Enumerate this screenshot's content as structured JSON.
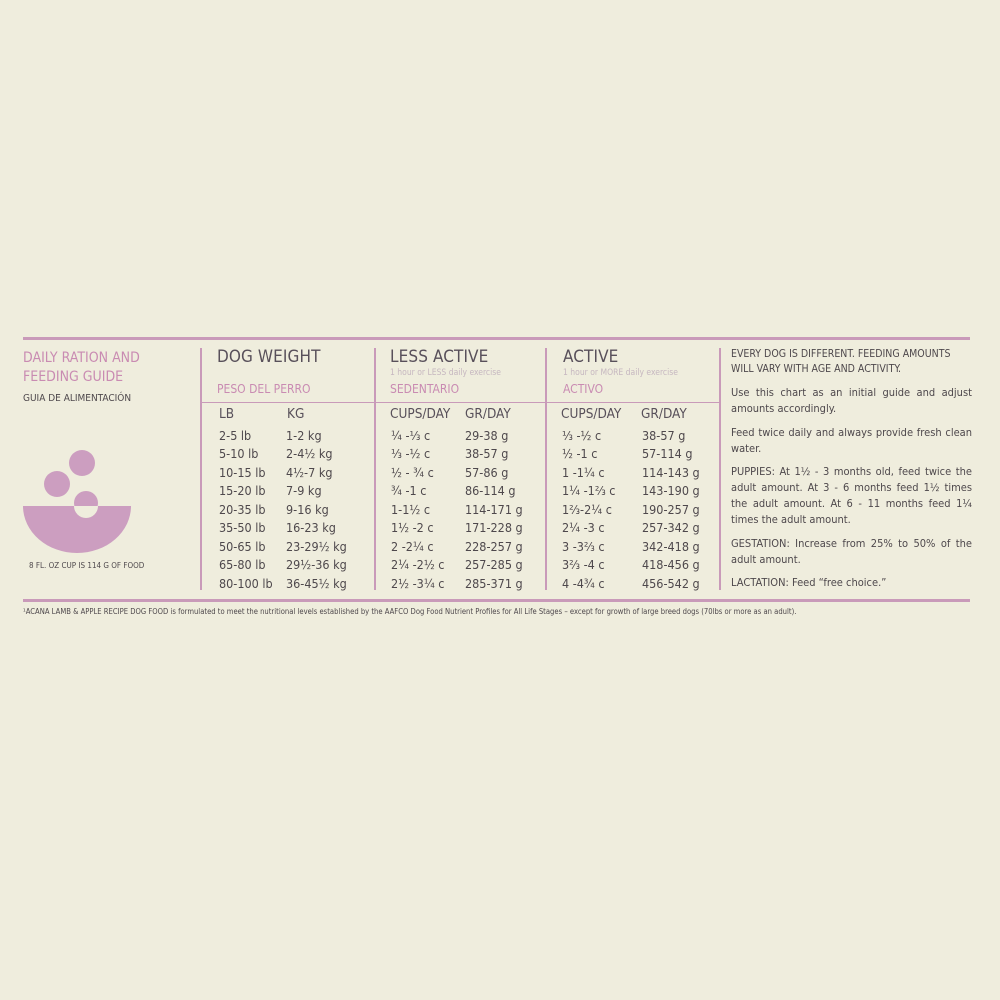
{
  "guide": {
    "title_line1": "DAILY RATION AND",
    "title_line2": "FEEDING GUIDE",
    "subtitle": "GUIA DE ALIMENTACIÓN",
    "cup_note": "8 FL. OZ CUP IS 114 G OF FOOD"
  },
  "table": {
    "dog_weight": {
      "title": "DOG WEIGHT",
      "spanish": "PESO DEL PERRO",
      "col1": "LB",
      "col2": "KG"
    },
    "less_active": {
      "title": "LESS ACTIVE",
      "note": "1 hour or LESS daily exercise",
      "spanish": "SEDENTARIO",
      "col1": "CUPS/DAY",
      "col2": "GR/DAY"
    },
    "active": {
      "title": "ACTIVE",
      "note": "1 hour or MORE daily exercise",
      "spanish": "ACTIVO",
      "col1": "CUPS/DAY",
      "col2": "GR/DAY"
    },
    "rows": [
      {
        "lb": "2-5 lb",
        "kg": "1-2 kg",
        "la_cups": "¼ -⅓ c",
        "la_gr": "29-38 g",
        "a_cups": "⅓ -½ c",
        "a_gr": "38-57 g"
      },
      {
        "lb": "5-10 lb",
        "kg": "2-4½ kg",
        "la_cups": "⅓ -½ c",
        "la_gr": "38-57 g",
        "a_cups": "½ -1 c",
        "a_gr": "57-114 g"
      },
      {
        "lb": "10-15 lb",
        "kg": "4½-7 kg",
        "la_cups": "½ - ¾ c",
        "la_gr": "57-86 g",
        "a_cups": "1 -1¼ c",
        "a_gr": "114-143 g"
      },
      {
        "lb": "15-20 lb",
        "kg": "7-9 kg",
        "la_cups": "¾ -1 c",
        "la_gr": "86-114 g",
        "a_cups": "1¼ -1⅔ c",
        "a_gr": "143-190 g"
      },
      {
        "lb": "20-35 lb",
        "kg": "9-16 kg",
        "la_cups": "1-1½ c",
        "la_gr": "114-171 g",
        "a_cups": "1⅔-2¼ c",
        "a_gr": "190-257 g"
      },
      {
        "lb": "35-50 lb",
        "kg": "16-23 kg",
        "la_cups": "1½ -2 c",
        "la_gr": "171-228 g",
        "a_cups": "2¼ -3 c",
        "a_gr": "257-342 g"
      },
      {
        "lb": "50-65 lb",
        "kg": "23-29½ kg",
        "la_cups": "2 -2¼ c",
        "la_gr": "228-257 g",
        "a_cups": "3 -3⅔ c",
        "a_gr": "342-418 g"
      },
      {
        "lb": "65-80 lb",
        "kg": "29½-36 kg",
        "la_cups": "2¼ -2½ c",
        "la_gr": "257-285 g",
        "a_cups": "3⅔ -4 c",
        "a_gr": "418-456 g"
      },
      {
        "lb": "80-100 lb",
        "kg": "36-45½ kg",
        "la_cups": "2½ -3¼ c",
        "la_gr": "285-371 g",
        "a_cups": "4 -4¾ c",
        "a_gr": "456-542 g"
      }
    ]
  },
  "notes": {
    "heading": "EVERY DOG IS DIFFERENT. FEEDING AMOUNTS WILL VARY WITH AGE AND ACTIVITY.",
    "p1": "Use this chart as an initial guide and adjust amounts accordingly.",
    "p2": "Feed twice daily and always provide fresh clean water.",
    "p3": "PUPPIES: At 1½ - 3 months old, feed twice the adult amount. At 3 - 6 months feed 1½ times the adult amount. At 6 - 11 months feed 1¼ times the adult amount.",
    "p4": "GESTATION: Increase from 25% to 50% of the adult amount.",
    "p5": "LACTATION: Feed “free choice.”"
  },
  "footnote": "¹ACANA LAMB & APPLE RECIPE DOG FOOD is formulated to meet the nutritional levels established by the AAFCO Dog Food Nutrient Profiles for All Life Stages – except for growth of large breed dogs (70lbs or more as an adult).",
  "colors": {
    "accent": "#c99ab9",
    "background": "#efeddd",
    "bowl": "#cc9ec0"
  }
}
